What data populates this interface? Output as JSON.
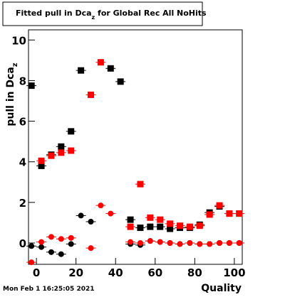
{
  "chart_data": {
    "type": "scatter",
    "title": {
      "main": "Fitted pull in Dca",
      "sub": "z",
      "rest": " for Global Rec All NoHits"
    },
    "y_label": {
      "main": "pull in Dca",
      "sub": "z"
    },
    "x_label": "Quality",
    "timestamp": "Mon Feb  1 16:25:05 2021",
    "xlim": [
      -4,
      104
    ],
    "ylim": [
      -1.05,
      10.5
    ],
    "xticks": [
      0,
      20,
      40,
      60,
      80,
      100
    ],
    "yticks": [
      0,
      2,
      4,
      6,
      8,
      10
    ],
    "x": [
      -2.5,
      2.5,
      7.5,
      12.5,
      17.5,
      22.5,
      27.5,
      32.5,
      37.5,
      42.5,
      47.5,
      52.5,
      57.5,
      62.5,
      67.5,
      72.5,
      77.5,
      82.5,
      87.5,
      92.5,
      97.5,
      102.5
    ],
    "series": [
      {
        "color": "#000000",
        "marker": "square",
        "values": [
          7.75,
          3.8,
          4.35,
          4.75,
          5.5,
          8.5,
          null,
          null,
          8.6,
          7.95,
          1.15,
          0.75,
          0.8,
          0.8,
          0.7,
          0.75,
          0.75,
          0.9,
          1.5,
          1.8,
          1.45,
          1.45
        ]
      },
      {
        "color": "#ff0000",
        "marker": "square",
        "values": [
          null,
          4.05,
          4.3,
          4.45,
          4.55,
          null,
          7.3,
          8.9,
          null,
          null,
          0.8,
          2.9,
          1.25,
          1.15,
          0.95,
          0.85,
          0.8,
          0.85,
          1.4,
          1.85,
          1.45,
          1.45
        ]
      },
      {
        "color": "#000000",
        "marker": "circle",
        "values": [
          -0.15,
          -0.2,
          -0.45,
          -0.55,
          -0.05,
          1.35,
          1.05,
          null,
          null,
          null,
          -0.05,
          -0.1,
          0.1,
          0.05,
          0.0,
          -0.05,
          0.0,
          -0.05,
          -0.05,
          0.0,
          0.0,
          0.0
        ]
      },
      {
        "color": "#ff0000",
        "marker": "circle",
        "values": [
          -0.95,
          0.05,
          0.3,
          0.2,
          0.25,
          null,
          -0.25,
          1.85,
          1.45,
          null,
          0.05,
          0.0,
          0.1,
          0.05,
          0.0,
          -0.05,
          0.0,
          -0.05,
          -0.05,
          0.0,
          0.0,
          0.0
        ]
      }
    ]
  }
}
